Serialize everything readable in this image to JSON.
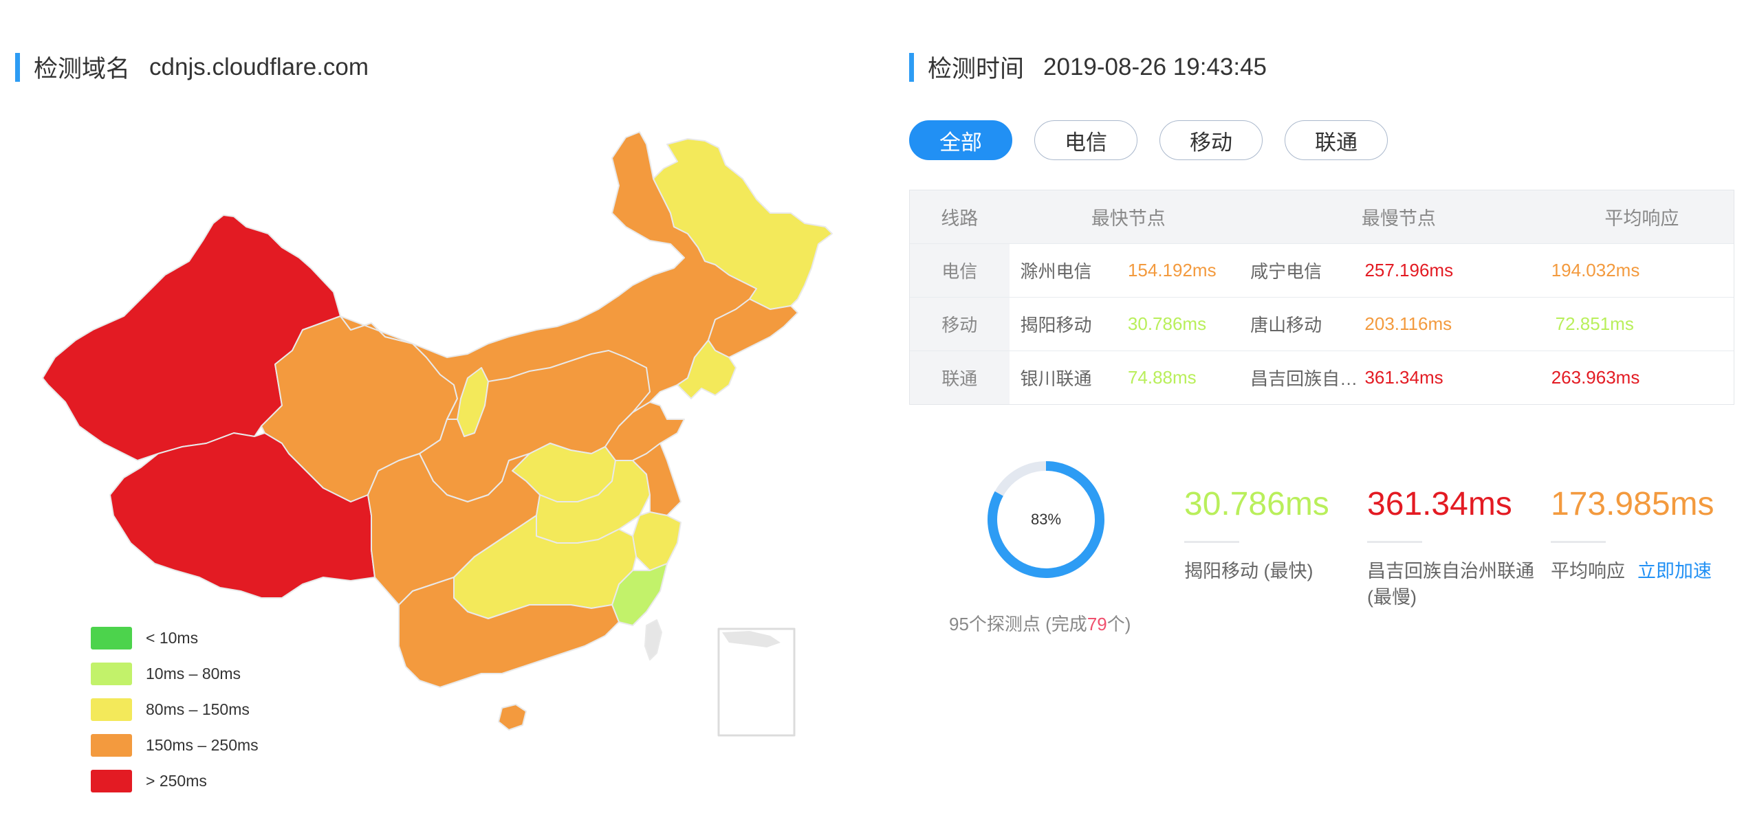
{
  "header": {
    "domain_label": "检测域名",
    "domain_value": "cdnjs.cloudflare.com",
    "time_label": "检测时间",
    "time_value": "2019-08-26 19:43:45"
  },
  "tabs": [
    {
      "label": "全部",
      "active": true
    },
    {
      "label": "电信",
      "active": false
    },
    {
      "label": "移动",
      "active": false
    },
    {
      "label": "联通",
      "active": false
    }
  ],
  "table": {
    "headers": {
      "line": "线路",
      "fastest": "最快节点",
      "slowest": "最慢节点",
      "average": "平均响应"
    },
    "rows": [
      {
        "line": "电信",
        "fast_node": "滁州电信",
        "fast_value": "154.192ms",
        "fast_color": "#f39a3e",
        "slow_node": "咸宁电信",
        "slow_value": "257.196ms",
        "slow_color": "#e31b23",
        "avg_value": "194.032ms",
        "avg_color": "#f39a3e"
      },
      {
        "line": "移动",
        "fast_node": "揭阳移动",
        "fast_value": "30.786ms",
        "fast_color": "#b9ef5b",
        "slow_node": "唐山移动",
        "slow_value": "203.116ms",
        "slow_color": "#f39a3e",
        "avg_value": "72.851ms",
        "avg_color": "#b9ef5b"
      },
      {
        "line": "联通",
        "fast_node": "银川联通",
        "fast_value": "74.88ms",
        "fast_color": "#b9ef5b",
        "slow_node": "昌吉回族自治州联通",
        "slow_value": "361.34ms",
        "slow_color": "#e31b23",
        "avg_value": "263.963ms",
        "avg_color": "#e31b23"
      }
    ]
  },
  "progress": {
    "percent_text": "83%",
    "fraction": 0.83,
    "probe_prefix": "95个探测点 (完成",
    "probe_done": "79",
    "probe_suffix": "个)"
  },
  "stats": {
    "fastest": {
      "value": "30.786ms",
      "desc": "揭阳移动 (最快)",
      "color": "#b9ef5b"
    },
    "slowest": {
      "value": "361.34ms",
      "desc": "昌吉回族自治州联通 (最慢)",
      "color": "#e31b23"
    },
    "average": {
      "value": "173.985ms",
      "desc": "平均响应",
      "link": "立即加速",
      "color": "#f39a3e"
    }
  },
  "legend": [
    {
      "label": "< 10ms",
      "color": "#4cd34c"
    },
    {
      "label": "10ms – 80ms",
      "color": "#c2f26a"
    },
    {
      "label": "80ms – 150ms",
      "color": "#f3e95a"
    },
    {
      "label": "150ms – 250ms",
      "color": "#f39a3e"
    },
    {
      "label": "> 250ms",
      "color": "#e31b23"
    }
  ],
  "colors": {
    "accent": "#2190f4",
    "ring_track": "#e3e8f0",
    "ring_fill": "#2d9cf4",
    "map_border": "#e9e9e9",
    "map_gray": "#e6e6e6"
  }
}
